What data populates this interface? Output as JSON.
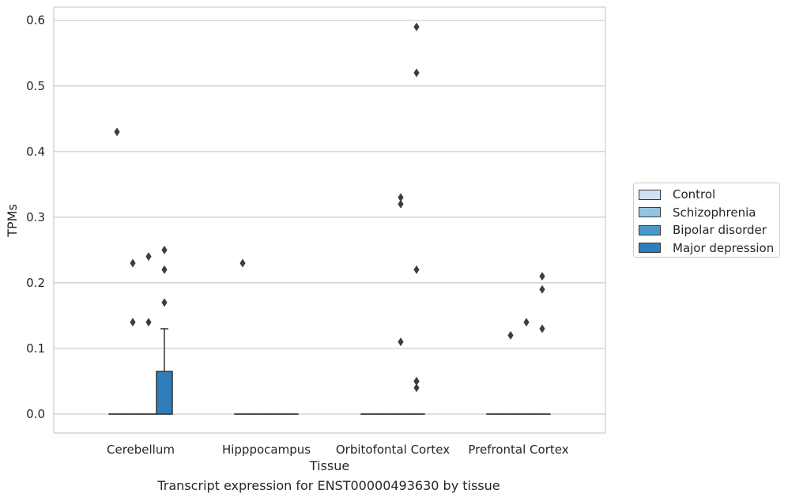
{
  "chart_data": {
    "type": "box",
    "title": "",
    "caption": "Transcript expression for ENST00000493630 by tissue",
    "xlabel": "Tissue",
    "ylabel": "TPMs",
    "ylim": [
      -0.03,
      0.62
    ],
    "yticks": [
      "0.0",
      "0.1",
      "0.2",
      "0.3",
      "0.4",
      "0.5",
      "0.6"
    ],
    "ytick_values": [
      0.0,
      0.1,
      0.2,
      0.3,
      0.4,
      0.5,
      0.6
    ],
    "grid": "horizontal",
    "legend_position": "right",
    "categories": [
      "Cerebellum",
      "Hipppocampus",
      "Orbitofontal Cortex",
      "Prefrontal Cortex"
    ],
    "series": [
      {
        "name": "Control",
        "color": "#d0e1f2",
        "boxes": [
          {
            "q1": 0,
            "median": 0,
            "q3": 0,
            "whisker_low": 0,
            "whisker_high": 0,
            "outliers": [
              0.43
            ]
          },
          {
            "q1": 0,
            "median": 0,
            "q3": 0,
            "whisker_low": 0,
            "whisker_high": 0,
            "outliers": [
              0.23
            ]
          },
          {
            "q1": 0,
            "median": 0,
            "q3": 0,
            "whisker_low": 0,
            "whisker_high": 0,
            "outliers": []
          },
          {
            "q1": 0,
            "median": 0,
            "q3": 0,
            "whisker_low": 0,
            "whisker_high": 0,
            "outliers": []
          }
        ]
      },
      {
        "name": "Schizophrenia",
        "color": "#94c4df",
        "boxes": [
          {
            "q1": 0,
            "median": 0,
            "q3": 0,
            "whisker_low": 0,
            "whisker_high": 0,
            "outliers": [
              0.23,
              0.14
            ]
          },
          {
            "q1": 0,
            "median": 0,
            "q3": 0,
            "whisker_low": 0,
            "whisker_high": 0,
            "outliers": []
          },
          {
            "q1": 0,
            "median": 0,
            "q3": 0,
            "whisker_low": 0,
            "whisker_high": 0,
            "outliers": []
          },
          {
            "q1": 0,
            "median": 0,
            "q3": 0,
            "whisker_low": 0,
            "whisker_high": 0,
            "outliers": [
              0.12
            ]
          }
        ]
      },
      {
        "name": "Bipolar disorder",
        "color": "#4a98c9",
        "boxes": [
          {
            "q1": 0,
            "median": 0,
            "q3": 0,
            "whisker_low": 0,
            "whisker_high": 0,
            "outliers": [
              0.24,
              0.14
            ]
          },
          {
            "q1": 0,
            "median": 0,
            "q3": 0,
            "whisker_low": 0,
            "whisker_high": 0,
            "outliers": []
          },
          {
            "q1": 0,
            "median": 0,
            "q3": 0,
            "whisker_low": 0,
            "whisker_high": 0,
            "outliers": [
              0.33,
              0.32,
              0.11
            ]
          },
          {
            "q1": 0,
            "median": 0,
            "q3": 0,
            "whisker_low": 0,
            "whisker_high": 0,
            "outliers": [
              0.14
            ]
          }
        ]
      },
      {
        "name": "Major depression",
        "color": "#2e7ebc",
        "boxes": [
          {
            "q1": 0,
            "median": 0,
            "q3": 0.065,
            "whisker_low": 0,
            "whisker_high": 0.13,
            "outliers": [
              0.25,
              0.22,
              0.17
            ]
          },
          {
            "q1": 0,
            "median": 0,
            "q3": 0,
            "whisker_low": 0,
            "whisker_high": 0,
            "outliers": []
          },
          {
            "q1": 0,
            "median": 0,
            "q3": 0,
            "whisker_low": 0,
            "whisker_high": 0,
            "outliers": [
              0.59,
              0.22,
              0.05
            ]
          },
          {
            "q1": 0,
            "median": 0,
            "q3": 0,
            "whisker_low": 0,
            "whisker_high": 0,
            "outliers": [
              0.19,
              0.13
            ]
          }
        ]
      },
      {
        "name": "",
        "color": "#2e7ebc",
        "boxes": [
          {
            "q1": 0,
            "median": 0,
            "q3": 0,
            "whisker_low": 0,
            "whisker_high": 0,
            "outliers": []
          },
          {
            "q1": 0,
            "median": 0,
            "q3": 0,
            "whisker_low": 0,
            "whisker_high": 0,
            "outliers": []
          },
          {
            "q1": 0,
            "median": 0,
            "q3": 0,
            "whisker_low": 0,
            "whisker_high": 0,
            "outliers": [
              0.52,
              0.05,
              0.04
            ]
          },
          {
            "q1": 0,
            "median": 0,
            "q3": 0,
            "whisker_low": 0,
            "whisker_high": 0,
            "outliers": [
              0.21
            ]
          }
        ]
      }
    ],
    "legend": [
      {
        "label": "Control",
        "color": "#d0e1f2"
      },
      {
        "label": "Schizophrenia",
        "color": "#94c4df"
      },
      {
        "label": "Bipolar disorder",
        "color": "#4a98c9"
      },
      {
        "label": "Major depression",
        "color": "#2e7ebc"
      }
    ]
  }
}
